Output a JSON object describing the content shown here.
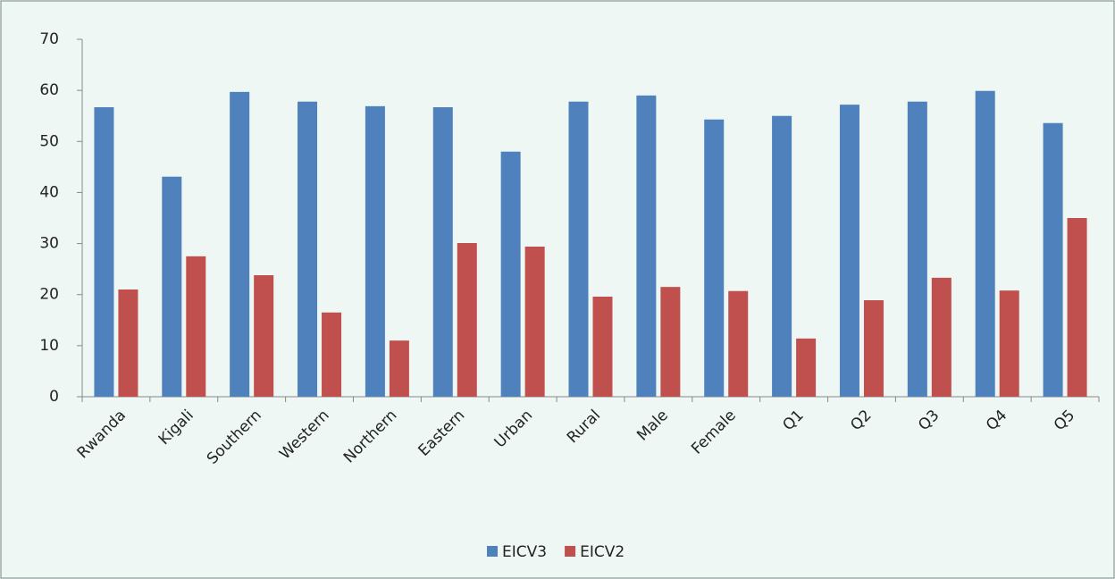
{
  "chart_data": {
    "type": "bar",
    "categories": [
      "Rwanda",
      "Kigali",
      "Southern",
      "Western",
      "Northern",
      "Eastern",
      "Urban",
      "Rural",
      "Male",
      "Female",
      "Q1",
      "Q2",
      "Q3",
      "Q4",
      "Q5"
    ],
    "series": [
      {
        "name": "EICV3",
        "color": "#4f81bd",
        "values": [
          56.7,
          43.1,
          59.7,
          57.8,
          56.9,
          56.7,
          48,
          57.8,
          59,
          54.3,
          55,
          57.2,
          57.8,
          59.9,
          53.6
        ]
      },
      {
        "name": "EICV2",
        "color": "#c0504d",
        "values": [
          21,
          27.5,
          23.8,
          16.5,
          11,
          30.1,
          29.4,
          19.6,
          21.5,
          20.7,
          11.4,
          18.9,
          23.3,
          20.8,
          35
        ]
      }
    ],
    "ylim": [
      0,
      70
    ],
    "yticks": [
      0,
      10,
      20,
      30,
      40,
      50,
      60,
      70
    ],
    "legend": "bottom"
  }
}
